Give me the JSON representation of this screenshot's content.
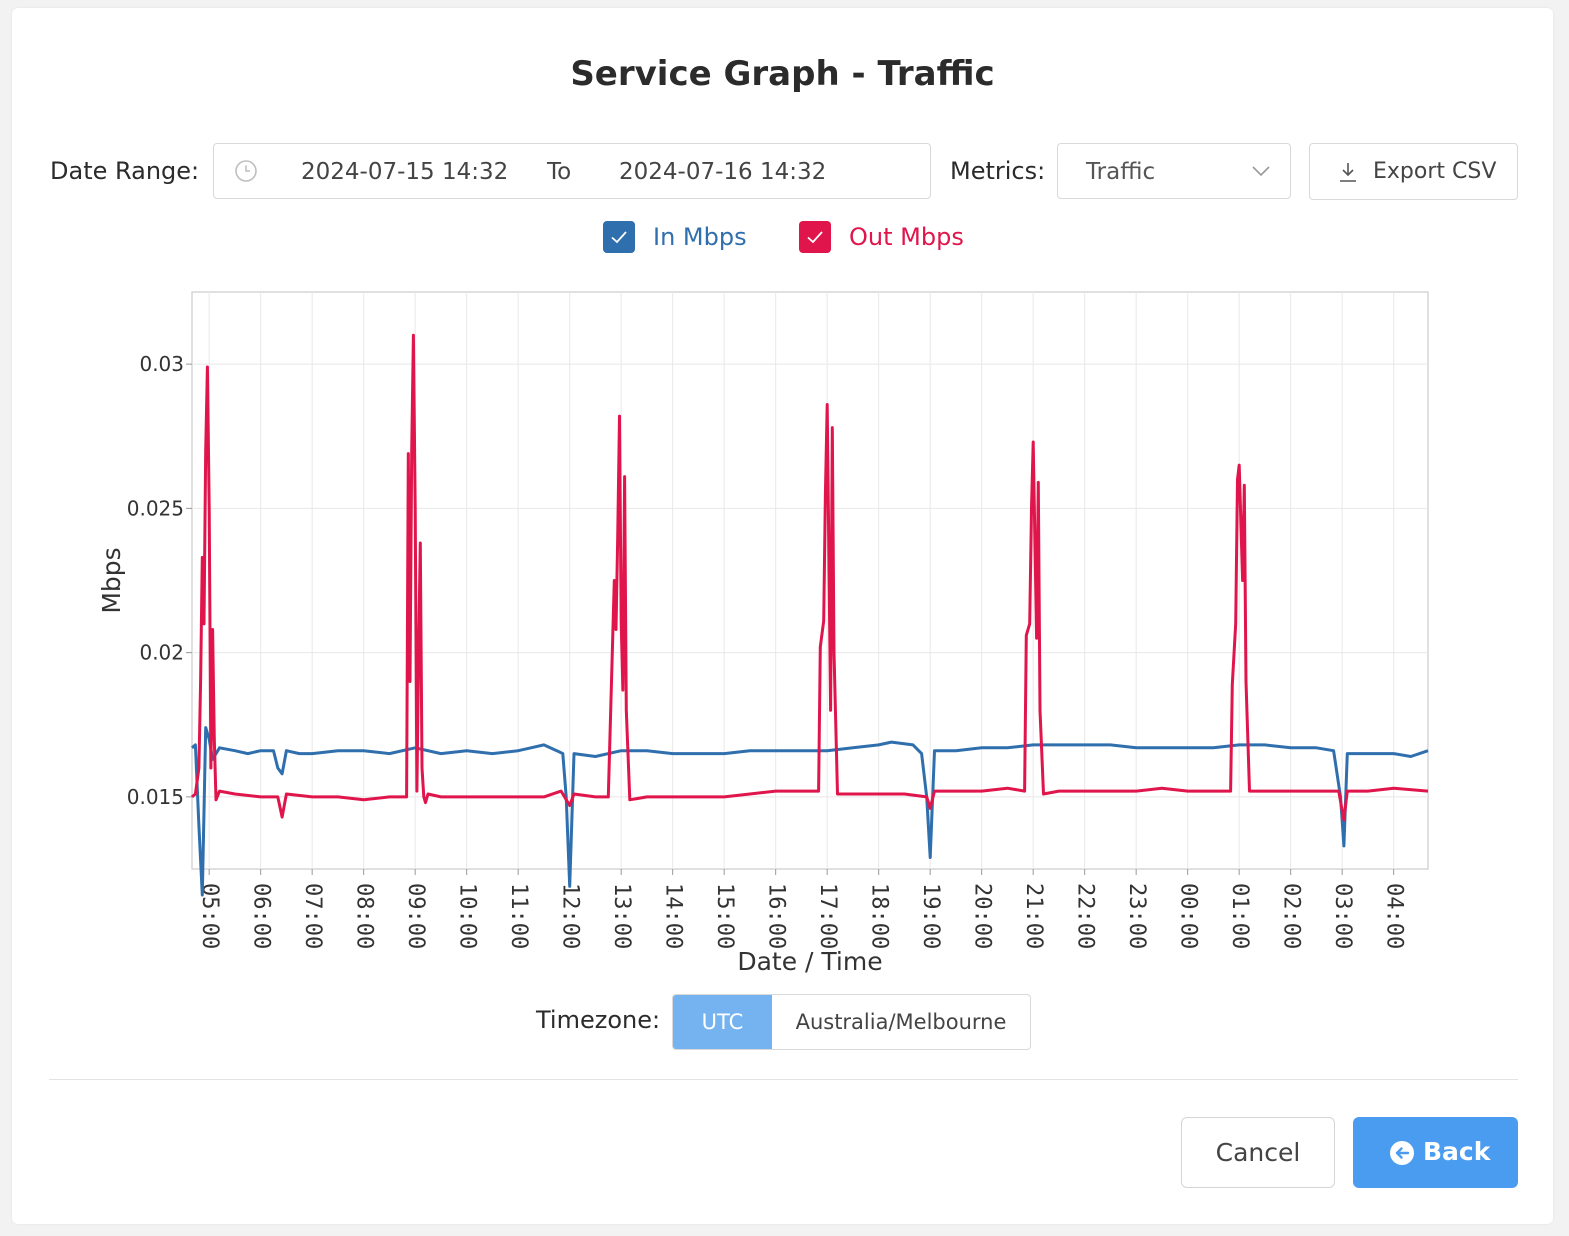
{
  "title": "Service Graph - Traffic",
  "date_range": {
    "label": "Date Range:",
    "from": "2024-07-15 14:32",
    "separator": "To",
    "to": "2024-07-16 14:32"
  },
  "metrics": {
    "label": "Metrics:",
    "selected": "Traffic"
  },
  "export_label": "Export CSV",
  "legend": {
    "in_label": "In Mbps",
    "out_label": "Out Mbps",
    "in_checked": true,
    "out_checked": true
  },
  "timezone": {
    "label": "Timezone:",
    "options": [
      "UTC",
      "Australia/Melbourne"
    ],
    "selected": "UTC"
  },
  "buttons": {
    "cancel": "Cancel",
    "back": "Back"
  },
  "icons": {
    "date": "clock-icon",
    "metrics_dropdown": "chevron-down-icon",
    "export": "download-icon",
    "back": "arrow-left-circle-icon",
    "checkbox": "check-icon"
  },
  "colors": {
    "in": "#2f6fad",
    "out": "#e0154b",
    "primary": "#4a9cf0",
    "selected_segment": "#74b3ef"
  },
  "chart_data": {
    "type": "line",
    "xlabel": "Date / Time",
    "ylabel": "Mbps",
    "yticks": [
      0.015,
      0.02,
      0.025,
      0.03
    ],
    "ylim": [
      0.0125,
      0.0325
    ],
    "xlim": [
      "2024-07-15T04:40",
      "2024-07-16T04:40"
    ],
    "xticks": [
      "2024-07-15T05:00",
      "2024-07-15T06:00",
      "2024-07-15T07:00",
      "2024-07-15T08:00",
      "2024-07-15T09:00",
      "2024-07-15T10:00",
      "2024-07-15T11:00",
      "2024-07-15T12:00",
      "2024-07-15T13:00",
      "2024-07-15T14:00",
      "2024-07-15T15:00",
      "2024-07-15T16:00",
      "2024-07-15T17:00",
      "2024-07-15T18:00",
      "2024-07-15T19:00",
      "2024-07-15T20:00",
      "2024-07-15T21:00",
      "2024-07-15T22:00",
      "2024-07-15T23:00",
      "2024-07-16T00:00",
      "2024-07-16T01:00",
      "2024-07-16T02:00",
      "2024-07-16T03:00",
      "2024-07-16T04:00"
    ],
    "xtick_labels": [
      "05:00",
      "06:00",
      "07:00",
      "08:00",
      "09:00",
      "10:00",
      "11:00",
      "12:00",
      "13:00",
      "14:00",
      "15:00",
      "16:00",
      "17:00",
      "18:00",
      "19:00",
      "20:00",
      "21:00",
      "22:00",
      "23:00",
      "00:00",
      "01:00",
      "02:00",
      "03:00",
      "04:00"
    ],
    "grid": true,
    "legend_position": "top",
    "series": [
      {
        "name": "In Mbps",
        "x": [
          "2024-07-15T04:40",
          "2024-07-15T04:44",
          "2024-07-15T04:48",
          "2024-07-15T04:52",
          "2024-07-15T04:56",
          "2024-07-15T05:00",
          "2024-07-15T05:04",
          "2024-07-15T05:12",
          "2024-07-15T05:30",
          "2024-07-15T05:45",
          "2024-07-15T06:00",
          "2024-07-15T06:15",
          "2024-07-15T06:20",
          "2024-07-15T06:25",
          "2024-07-15T06:30",
          "2024-07-15T06:45",
          "2024-07-15T07:00",
          "2024-07-15T07:30",
          "2024-07-15T08:00",
          "2024-07-15T08:30",
          "2024-07-15T09:00",
          "2024-07-15T09:30",
          "2024-07-15T10:00",
          "2024-07-15T10:30",
          "2024-07-15T11:00",
          "2024-07-15T11:15",
          "2024-07-15T11:30",
          "2024-07-15T11:45",
          "2024-07-15T11:52",
          "2024-07-15T11:56",
          "2024-07-15T12:00",
          "2024-07-15T12:05",
          "2024-07-15T12:30",
          "2024-07-15T13:00",
          "2024-07-15T13:30",
          "2024-07-15T14:00",
          "2024-07-15T14:30",
          "2024-07-15T15:00",
          "2024-07-15T15:30",
          "2024-07-15T16:00",
          "2024-07-15T16:30",
          "2024-07-15T17:00",
          "2024-07-15T17:30",
          "2024-07-15T18:00",
          "2024-07-15T18:15",
          "2024-07-15T18:40",
          "2024-07-15T18:50",
          "2024-07-15T18:56",
          "2024-07-15T19:00",
          "2024-07-15T19:05",
          "2024-07-15T19:30",
          "2024-07-15T20:00",
          "2024-07-15T20:30",
          "2024-07-15T21:00",
          "2024-07-15T21:30",
          "2024-07-15T22:00",
          "2024-07-15T22:30",
          "2024-07-15T23:00",
          "2024-07-15T23:30",
          "2024-07-16T00:00",
          "2024-07-16T00:30",
          "2024-07-16T01:00",
          "2024-07-16T01:30",
          "2024-07-16T02:00",
          "2024-07-16T02:30",
          "2024-07-16T02:50",
          "2024-07-16T02:58",
          "2024-07-16T03:02",
          "2024-07-16T03:06",
          "2024-07-16T03:30",
          "2024-07-16T04:00",
          "2024-07-16T04:20",
          "2024-07-16T04:40"
        ],
        "y": [
          0.0167,
          0.0168,
          0.014,
          0.0116,
          0.0174,
          0.017,
          0.0163,
          0.0167,
          0.0166,
          0.0165,
          0.0166,
          0.0166,
          0.016,
          0.0158,
          0.0166,
          0.0165,
          0.0165,
          0.0166,
          0.0166,
          0.0165,
          0.0167,
          0.0165,
          0.0166,
          0.0165,
          0.0166,
          0.0167,
          0.0168,
          0.0166,
          0.0165,
          0.015,
          0.0119,
          0.0165,
          0.0164,
          0.0166,
          0.0166,
          0.0165,
          0.0165,
          0.0165,
          0.0166,
          0.0166,
          0.0166,
          0.0166,
          0.0167,
          0.0168,
          0.0169,
          0.0168,
          0.0165,
          0.015,
          0.0129,
          0.0166,
          0.0166,
          0.0167,
          0.0167,
          0.0168,
          0.0168,
          0.0168,
          0.0168,
          0.0167,
          0.0167,
          0.0167,
          0.0167,
          0.0168,
          0.0168,
          0.0167,
          0.0167,
          0.0166,
          0.015,
          0.0133,
          0.0165,
          0.0165,
          0.0165,
          0.0164,
          0.0166
        ]
      },
      {
        "name": "Out Mbps",
        "x": [
          "2024-07-15T04:40",
          "2024-07-15T04:44",
          "2024-07-15T04:48",
          "2024-07-15T04:50",
          "2024-07-15T04:52",
          "2024-07-15T04:54",
          "2024-07-15T04:56",
          "2024-07-15T04:58",
          "2024-07-15T05:00",
          "2024-07-15T05:02",
          "2024-07-15T05:04",
          "2024-07-15T05:06",
          "2024-07-15T05:08",
          "2024-07-15T05:12",
          "2024-07-15T05:30",
          "2024-07-15T06:00",
          "2024-07-15T06:20",
          "2024-07-15T06:25",
          "2024-07-15T06:30",
          "2024-07-15T07:00",
          "2024-07-15T07:30",
          "2024-07-15T08:00",
          "2024-07-15T08:30",
          "2024-07-15T08:45",
          "2024-07-15T08:50",
          "2024-07-15T08:52",
          "2024-07-15T08:54",
          "2024-07-15T08:56",
          "2024-07-15T08:58",
          "2024-07-15T09:00",
          "2024-07-15T09:02",
          "2024-07-15T09:04",
          "2024-07-15T09:06",
          "2024-07-15T09:08",
          "2024-07-15T09:10",
          "2024-07-15T09:12",
          "2024-07-15T09:15",
          "2024-07-15T09:30",
          "2024-07-15T10:00",
          "2024-07-15T10:30",
          "2024-07-15T11:00",
          "2024-07-15T11:30",
          "2024-07-15T11:50",
          "2024-07-15T12:00",
          "2024-07-15T12:05",
          "2024-07-15T12:30",
          "2024-07-15T12:45",
          "2024-07-15T12:52",
          "2024-07-15T12:54",
          "2024-07-15T12:56",
          "2024-07-15T12:58",
          "2024-07-15T13:00",
          "2024-07-15T13:02",
          "2024-07-15T13:04",
          "2024-07-15T13:06",
          "2024-07-15T13:10",
          "2024-07-15T13:30",
          "2024-07-15T14:00",
          "2024-07-15T14:30",
          "2024-07-15T15:00",
          "2024-07-15T15:30",
          "2024-07-15T16:00",
          "2024-07-15T16:30",
          "2024-07-15T16:50",
          "2024-07-15T16:52",
          "2024-07-15T16:56",
          "2024-07-15T16:58",
          "2024-07-15T17:00",
          "2024-07-15T17:04",
          "2024-07-15T17:06",
          "2024-07-15T17:08",
          "2024-07-15T17:12",
          "2024-07-15T17:30",
          "2024-07-15T18:00",
          "2024-07-15T18:30",
          "2024-07-15T18:56",
          "2024-07-15T19:00",
          "2024-07-15T19:05",
          "2024-07-15T19:30",
          "2024-07-15T20:00",
          "2024-07-15T20:30",
          "2024-07-15T20:50",
          "2024-07-15T20:52",
          "2024-07-15T20:56",
          "2024-07-15T20:58",
          "2024-07-15T21:00",
          "2024-07-15T21:04",
          "2024-07-15T21:06",
          "2024-07-15T21:08",
          "2024-07-15T21:12",
          "2024-07-15T21:30",
          "2024-07-15T22:00",
          "2024-07-15T22:30",
          "2024-07-15T23:00",
          "2024-07-15T23:30",
          "2024-07-16T00:00",
          "2024-07-16T00:30",
          "2024-07-16T00:50",
          "2024-07-16T00:52",
          "2024-07-16T00:56",
          "2024-07-16T00:58",
          "2024-07-16T01:00",
          "2024-07-16T01:04",
          "2024-07-16T01:06",
          "2024-07-16T01:08",
          "2024-07-16T01:12",
          "2024-07-16T01:30",
          "2024-07-16T02:00",
          "2024-07-16T02:30",
          "2024-07-16T02:56",
          "2024-07-16T03:02",
          "2024-07-16T03:06",
          "2024-07-16T03:30",
          "2024-07-16T04:00",
          "2024-07-16T04:40"
        ],
        "y": [
          0.015,
          0.0151,
          0.016,
          0.019,
          0.0233,
          0.021,
          0.027,
          0.0299,
          0.025,
          0.016,
          0.0208,
          0.017,
          0.0149,
          0.0152,
          0.0151,
          0.015,
          0.015,
          0.0143,
          0.0151,
          0.015,
          0.015,
          0.0149,
          0.015,
          0.015,
          0.015,
          0.0269,
          0.019,
          0.027,
          0.031,
          0.025,
          0.0152,
          0.02,
          0.0238,
          0.016,
          0.015,
          0.0148,
          0.0151,
          0.015,
          0.015,
          0.015,
          0.015,
          0.015,
          0.0152,
          0.0147,
          0.0151,
          0.015,
          0.015,
          0.0225,
          0.0208,
          0.024,
          0.0282,
          0.021,
          0.0187,
          0.0261,
          0.018,
          0.0149,
          0.015,
          0.015,
          0.015,
          0.015,
          0.0151,
          0.0152,
          0.0152,
          0.0152,
          0.0202,
          0.0211,
          0.0255,
          0.0286,
          0.018,
          0.0278,
          0.02,
          0.0151,
          0.0151,
          0.0151,
          0.0151,
          0.015,
          0.0146,
          0.0152,
          0.0152,
          0.0152,
          0.0153,
          0.0152,
          0.0206,
          0.021,
          0.025,
          0.0273,
          0.0205,
          0.0259,
          0.018,
          0.0151,
          0.0152,
          0.0152,
          0.0152,
          0.0152,
          0.0153,
          0.0152,
          0.0152,
          0.0152,
          0.0189,
          0.021,
          0.026,
          0.0265,
          0.0225,
          0.0258,
          0.019,
          0.0152,
          0.0152,
          0.0152,
          0.0152,
          0.0152,
          0.0142,
          0.0152,
          0.0152,
          0.0153,
          0.0152
        ]
      }
    ]
  }
}
